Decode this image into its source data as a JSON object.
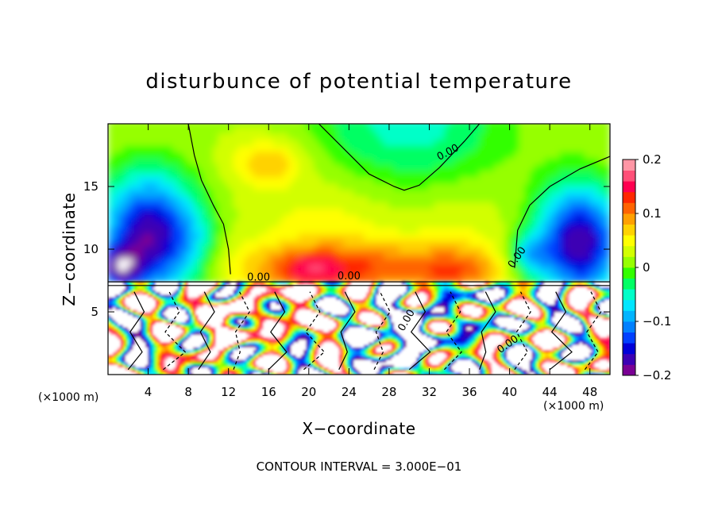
{
  "chart_data": {
    "type": "heatmap",
    "title": "disturbunce of potential temperature",
    "xlabel": "X−coordinate",
    "ylabel": "Z−coordinate",
    "x_unit_label": "(×1000 m)",
    "x_ticks": [
      "4",
      "8",
      "12",
      "16",
      "20",
      "24",
      "28",
      "32",
      "36",
      "40",
      "44",
      "48"
    ],
    "x_tick_values": [
      4,
      8,
      12,
      16,
      20,
      24,
      28,
      32,
      36,
      40,
      44,
      48
    ],
    "xlim": [
      0,
      50
    ],
    "y_ticks": [
      "5",
      "10",
      "15"
    ],
    "y_tick_values": [
      5,
      10,
      15
    ],
    "ylim": [
      0,
      20
    ],
    "colorbar": {
      "ticks": [
        "0.2",
        "0.1",
        "0",
        "−0.1",
        "−0.2"
      ],
      "tick_values": [
        0.2,
        0.1,
        0,
        -0.1,
        -0.2
      ],
      "range": [
        -0.2,
        0.2
      ],
      "colors": [
        "#7a0094",
        "#3c00b4",
        "#0000d8",
        "#0040ff",
        "#0080ff",
        "#00b4ff",
        "#00e6ff",
        "#00ffc8",
        "#00ff64",
        "#32ff00",
        "#96ff00",
        "#d2ff00",
        "#ffff00",
        "#ffd200",
        "#ffa000",
        "#ff6400",
        "#ff2800",
        "#ff0050",
        "#ff5078",
        "#ff96a5"
      ]
    },
    "contour_labels": [
      "0.00",
      "0.00",
      "0.00",
      "0.00",
      "0.00",
      "0.00"
    ],
    "legend_placement": "right",
    "grid": false
  },
  "footer": {
    "contour_interval": "CONTOUR INTERVAL = 3.000E−01"
  }
}
